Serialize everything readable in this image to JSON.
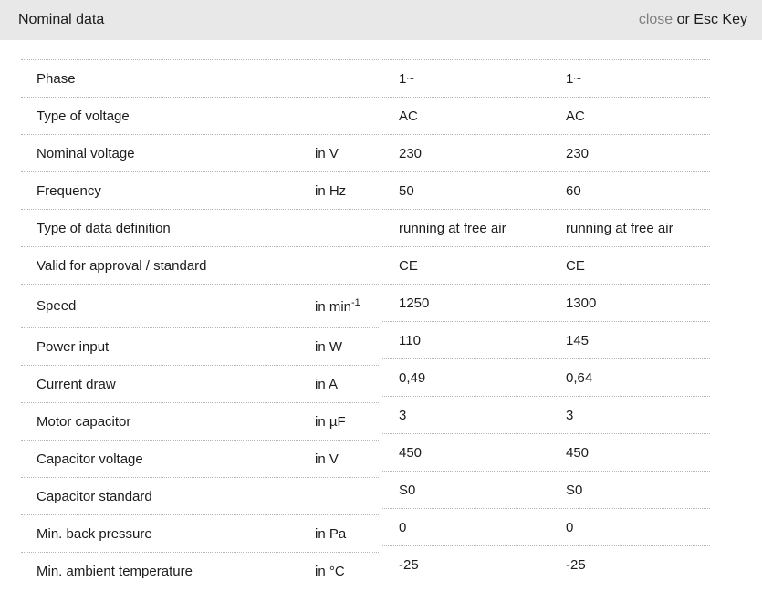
{
  "header": {
    "title": "Nominal data",
    "close_label": "close",
    "close_suffix": " or Esc Key"
  },
  "colors": {
    "header_bg": "#e8e8e8",
    "text": "#1c1c1c",
    "muted": "#7f7f7f",
    "divider": "#b5b5b5"
  },
  "table": {
    "columns": [
      "parameter",
      "unit",
      "variant_50hz",
      "variant_60hz"
    ],
    "rows": [
      {
        "label": "Phase",
        "unit": "",
        "values": [
          "1~",
          "1~"
        ]
      },
      {
        "label": "Type of voltage",
        "unit": "",
        "values": [
          "AC",
          "AC"
        ]
      },
      {
        "label": "Nominal voltage",
        "unit": "in V",
        "values": [
          "230",
          "230"
        ]
      },
      {
        "label": "Frequency",
        "unit": "in Hz",
        "values": [
          "50",
          "60"
        ]
      },
      {
        "label": "Type of data definition",
        "unit": "",
        "values": [
          "running at free air",
          "running at free air"
        ]
      },
      {
        "label": "Valid for approval / standard",
        "unit": "",
        "values": [
          "CE",
          "CE"
        ]
      },
      {
        "label": "Speed",
        "unit": "in min",
        "unit_sup": "-1",
        "values": [
          "1250",
          "1300"
        ]
      },
      {
        "label": "Power input",
        "unit": "in W",
        "values": [
          "110",
          "145"
        ]
      },
      {
        "label": "Current draw",
        "unit": "in A",
        "values": [
          "0,49",
          "0,64"
        ]
      },
      {
        "label": "Motor capacitor",
        "unit": "in µF",
        "values": [
          "3",
          "3"
        ]
      },
      {
        "label": "Capacitor voltage",
        "unit": "in V",
        "values": [
          "450",
          "450"
        ]
      },
      {
        "label": "Capacitor standard",
        "unit": "",
        "values": [
          "S0",
          "S0"
        ]
      },
      {
        "label": "Min. back pressure",
        "unit": "in Pa",
        "values": [
          "0",
          "0"
        ]
      },
      {
        "label": "Min. ambient temperature",
        "unit": "in °C",
        "values": [
          "-25",
          "-25"
        ]
      }
    ]
  }
}
